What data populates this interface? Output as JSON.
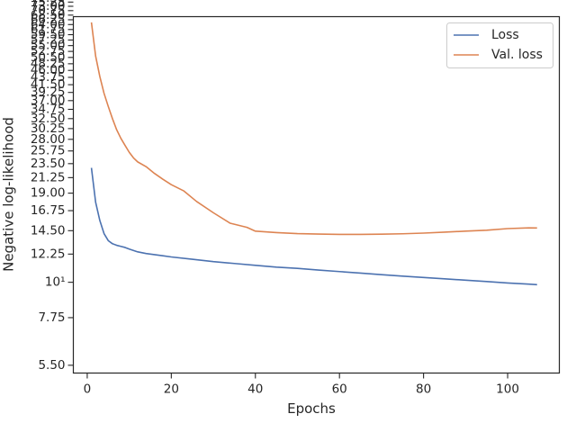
{
  "chart_data": {
    "type": "line",
    "xlabel": "Epochs",
    "ylabel": "Negative log-likelihood",
    "xlim": [
      -3.3,
      112.3
    ],
    "ylim": [
      5.2,
      67.75
    ],
    "yscale": "log",
    "grid": false,
    "legend_position": "top-right",
    "x_ticks": [
      0,
      20,
      40,
      60,
      80,
      100
    ],
    "y_ticks": [
      {
        "value": 5.5,
        "label": "5.50"
      },
      {
        "value": 7.75,
        "label": "7.75"
      },
      {
        "value": 10,
        "label": "10¹"
      },
      {
        "value": 12.25,
        "label": "12.25"
      },
      {
        "value": 14.5,
        "label": "14.50"
      },
      {
        "value": 16.75,
        "label": "16.75"
      },
      {
        "value": 19.0,
        "label": "19.00"
      },
      {
        "value": 21.25,
        "label": "21.25"
      },
      {
        "value": 23.5,
        "label": "23.50"
      },
      {
        "value": 25.75,
        "label": "25.75"
      },
      {
        "value": 28.0,
        "label": "28.00"
      },
      {
        "value": 30.25,
        "label": "30.25"
      },
      {
        "value": 32.5,
        "label": "32.50"
      },
      {
        "value": 34.75,
        "label": "34.75"
      },
      {
        "value": 37.0,
        "label": "37.00"
      },
      {
        "value": 39.25,
        "label": "39.25"
      },
      {
        "value": 41.5,
        "label": "41.50"
      },
      {
        "value": 43.75,
        "label": "43.75"
      },
      {
        "value": 46.0,
        "label": "46.00"
      },
      {
        "value": 48.25,
        "label": "48.25"
      },
      {
        "value": 50.5,
        "label": "50.50"
      },
      {
        "value": 52.75,
        "label": "52.75"
      },
      {
        "value": 55.0,
        "label": "55.00"
      },
      {
        "value": 57.25,
        "label": "57.25"
      },
      {
        "value": 59.5,
        "label": "59.50"
      },
      {
        "value": 61.75,
        "label": "61.75"
      },
      {
        "value": 64.0,
        "label": "64.00"
      },
      {
        "value": 66.25,
        "label": "66.25"
      },
      {
        "value": 68.5,
        "label": "68.50"
      },
      {
        "value": 70.75,
        "label": "70.75"
      },
      {
        "value": 73.0,
        "label": "73.00"
      },
      {
        "value": 75.25,
        "label": "75.25"
      },
      {
        "value": 77.5,
        "label": "77.50"
      },
      {
        "value": 79.75,
        "label": "79.75"
      },
      {
        "value": 82.0,
        "label": "82.00"
      },
      {
        "value": 84.25,
        "label": "84.25"
      },
      {
        "value": 86.5,
        "label": "86.50"
      },
      {
        "value": 88.75,
        "label": "88.75"
      },
      {
        "value": 91.0,
        "label": "91.00"
      },
      {
        "value": 93.25,
        "label": "93.25"
      },
      {
        "value": 95.5,
        "label": "95.50"
      },
      {
        "value": 97.75,
        "label": "97.75"
      }
    ],
    "series": [
      {
        "name": "Loss",
        "color": "#4c72b0",
        "points": [
          [
            1,
            22.8
          ],
          [
            2,
            17.8
          ],
          [
            3,
            15.6
          ],
          [
            4,
            14.2
          ],
          [
            5,
            13.5
          ],
          [
            6,
            13.2
          ],
          [
            7,
            13.05
          ],
          [
            8,
            12.95
          ],
          [
            9,
            12.85
          ],
          [
            10,
            12.7
          ],
          [
            12,
            12.45
          ],
          [
            14,
            12.3
          ],
          [
            16,
            12.2
          ],
          [
            18,
            12.1
          ],
          [
            20,
            12.0
          ],
          [
            25,
            11.8
          ],
          [
            30,
            11.6
          ],
          [
            35,
            11.45
          ],
          [
            40,
            11.3
          ],
          [
            45,
            11.15
          ],
          [
            50,
            11.05
          ],
          [
            55,
            10.92
          ],
          [
            60,
            10.8
          ],
          [
            65,
            10.68
          ],
          [
            70,
            10.56
          ],
          [
            75,
            10.45
          ],
          [
            80,
            10.35
          ],
          [
            85,
            10.25
          ],
          [
            90,
            10.15
          ],
          [
            95,
            10.05
          ],
          [
            100,
            9.95
          ],
          [
            105,
            9.87
          ],
          [
            107,
            9.83
          ]
        ]
      },
      {
        "name": "Val. loss",
        "color": "#dd8452",
        "points": [
          [
            1,
            65.0
          ],
          [
            2,
            51.0
          ],
          [
            3,
            44.0
          ],
          [
            4,
            39.0
          ],
          [
            5,
            35.5
          ],
          [
            6,
            32.5
          ],
          [
            7,
            30.0
          ],
          [
            8,
            28.2
          ],
          [
            9,
            26.8
          ],
          [
            10,
            25.5
          ],
          [
            11,
            24.5
          ],
          [
            12,
            23.8
          ],
          [
            14,
            23.0
          ],
          [
            16,
            21.9
          ],
          [
            18,
            21.0
          ],
          [
            20,
            20.2
          ],
          [
            23,
            19.3
          ],
          [
            26,
            17.9
          ],
          [
            30,
            16.5
          ],
          [
            34,
            15.3
          ],
          [
            38,
            14.85
          ],
          [
            40,
            14.45
          ],
          [
            45,
            14.3
          ],
          [
            50,
            14.2
          ],
          [
            55,
            14.15
          ],
          [
            60,
            14.12
          ],
          [
            65,
            14.12
          ],
          [
            70,
            14.14
          ],
          [
            75,
            14.18
          ],
          [
            80,
            14.25
          ],
          [
            85,
            14.35
          ],
          [
            90,
            14.45
          ],
          [
            95,
            14.55
          ],
          [
            100,
            14.72
          ],
          [
            105,
            14.8
          ],
          [
            107,
            14.78
          ]
        ]
      }
    ]
  }
}
